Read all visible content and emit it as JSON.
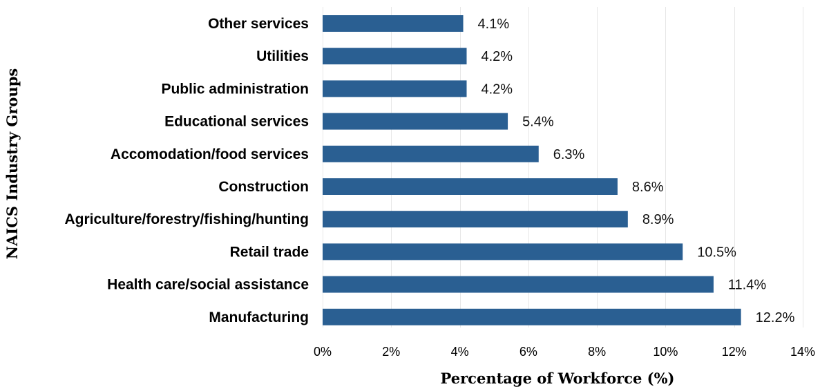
{
  "chart_data": {
    "type": "bar",
    "orientation": "horizontal",
    "categories": [
      "Other services",
      "Utilities",
      "Public administration",
      "Educational services",
      "Accomodation/food services",
      "Construction",
      "Agriculture/forestry/fishing/hunting",
      "Retail trade",
      "Health care/social assistance",
      "Manufacturing"
    ],
    "values": [
      4.1,
      4.2,
      4.2,
      5.4,
      6.3,
      8.6,
      8.9,
      10.5,
      11.4,
      12.2
    ],
    "value_labels": [
      "4.1%",
      "4.2%",
      "4.2%",
      "5.4%",
      "6.3%",
      "8.6%",
      "8.9%",
      "10.5%",
      "11.4%",
      "12.2%"
    ],
    "xlabel": "Percentage of Workforce (%)",
    "ylabel": "NAICS Industry Groups",
    "xlim": [
      0,
      14
    ],
    "xticks": [
      0,
      2,
      4,
      6,
      8,
      10,
      12,
      14
    ],
    "xtick_labels": [
      "0%",
      "2%",
      "4%",
      "6%",
      "8%",
      "10%",
      "12%",
      "14%"
    ],
    "grid": "vertical",
    "legend": "none",
    "bar_color": "#2a5f92"
  }
}
